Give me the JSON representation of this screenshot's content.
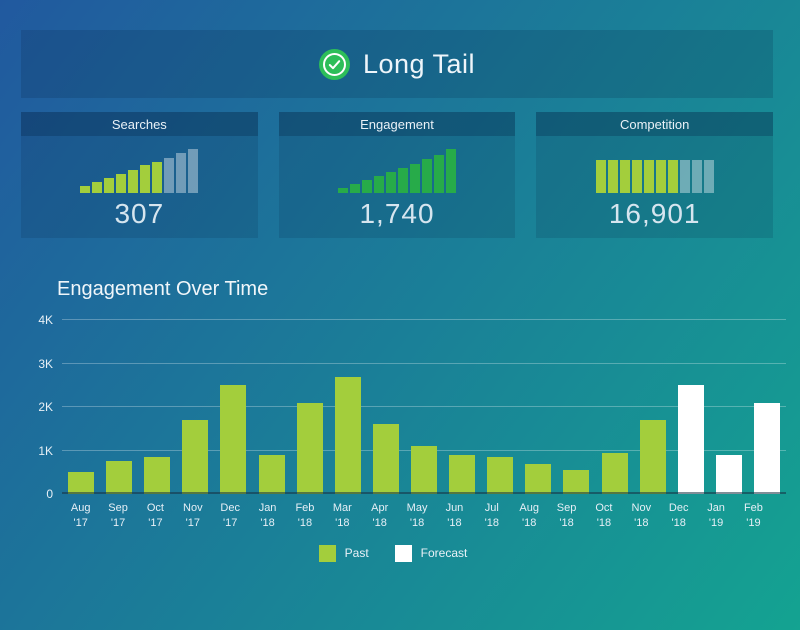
{
  "header": {
    "title": "Long Tail",
    "icon": "check-circle-icon"
  },
  "colors": {
    "bg_gradient_start": "#21599f",
    "bg_gradient_end": "#14a391",
    "past_green": "#a3ce3c",
    "kelly_green": "#27ab49",
    "forecast_white": "#ffffff",
    "faded_bar": "rgba(255,255,255,0.38)",
    "icon_green": "#2dbe59"
  },
  "cards": [
    {
      "title": "Searches",
      "value": "307",
      "mini": {
        "values": [
          0.15,
          0.24,
          0.33,
          0.42,
          0.51,
          0.6,
          0.68,
          0.77,
          0.86,
          0.95
        ],
        "past_count": 7,
        "bar_color": "#a3ce3c",
        "faded_color": "rgba(255,255,255,0.38)"
      }
    },
    {
      "title": "Engagement",
      "value": "1,740",
      "mini": {
        "values": [
          0.1,
          0.19,
          0.28,
          0.37,
          0.46,
          0.55,
          0.64,
          0.73,
          0.83,
          0.95
        ],
        "past_count": 10,
        "bar_color": "#27ab49",
        "faded_color": "rgba(255,255,255,0.38)"
      }
    },
    {
      "title": "Competition",
      "value": "16,901",
      "mini": {
        "values": [
          0.72,
          0.72,
          0.72,
          0.72,
          0.72,
          0.72,
          0.72,
          0.72,
          0.72,
          0.72
        ],
        "past_count": 7,
        "bar_color": "#a3ce3c",
        "faded_color": "rgba(255,255,255,0.38)"
      }
    }
  ],
  "chart_data": {
    "type": "bar",
    "title": "Engagement Over Time",
    "xlabel": "",
    "ylabel": "",
    "ylim": [
      0,
      4000
    ],
    "grid": true,
    "legend_position": "bottom",
    "y_ticks": [
      "0",
      "1K",
      "2K",
      "3K",
      "4K"
    ],
    "categories": [
      "Aug '17",
      "Sep '17",
      "Oct '17",
      "Nov '17",
      "Dec '17",
      "Jan '18",
      "Feb '18",
      "Mar '18",
      "Apr '18",
      "May '18",
      "Jun '18",
      "Jul '18",
      "Aug '18",
      "Sep '18",
      "Oct '18",
      "Nov '18",
      "Dec '18",
      "Jan '19",
      "Feb '19"
    ],
    "series": [
      {
        "name": "Past",
        "color": "#a3ce3c",
        "values": [
          500,
          750,
          850,
          1700,
          2500,
          900,
          2100,
          2700,
          1600,
          1100,
          900,
          850,
          700,
          550,
          950,
          1700,
          null,
          null,
          null
        ]
      },
      {
        "name": "Forecast",
        "color": "#ffffff",
        "values": [
          null,
          null,
          null,
          null,
          null,
          null,
          null,
          null,
          null,
          null,
          null,
          null,
          null,
          null,
          null,
          null,
          2500,
          900,
          2100
        ]
      }
    ],
    "legend": [
      {
        "label": "Past",
        "color": "#a3ce3c"
      },
      {
        "label": "Forecast",
        "color": "#ffffff"
      }
    ]
  }
}
